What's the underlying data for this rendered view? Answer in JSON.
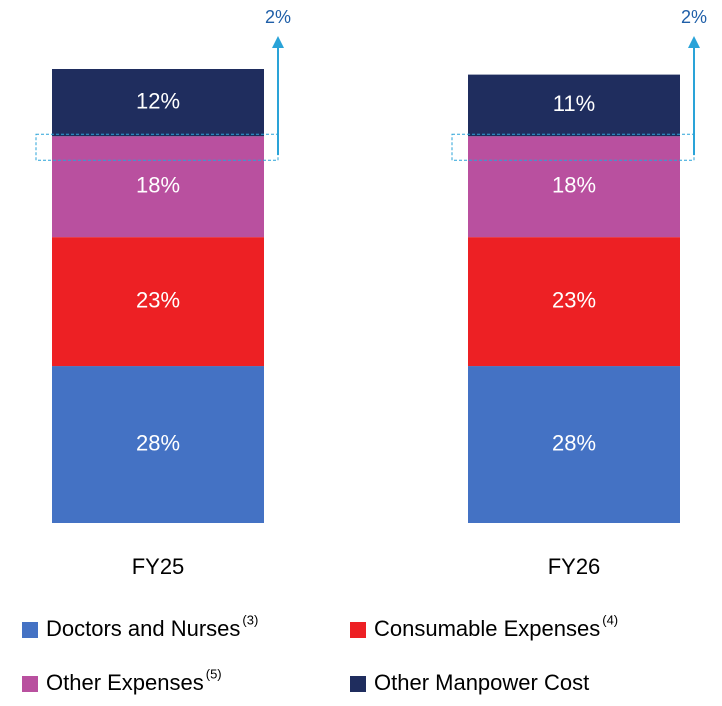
{
  "chart_data": {
    "type": "stacked_bar",
    "categories": [
      "FY25",
      "FY26"
    ],
    "series": [
      {
        "name": "Doctors and Nurses",
        "footnote": "(3)",
        "color": "#4472c4",
        "values": [
          28,
          28
        ],
        "value_labels": [
          "28%",
          "28%"
        ]
      },
      {
        "name": "Consumable Expenses",
        "footnote": "(4)",
        "color": "#ed2024",
        "values": [
          23,
          23
        ],
        "value_labels": [
          "23%",
          "23%"
        ]
      },
      {
        "name": "Other Expenses",
        "footnote": "(5)",
        "color": "#b9509f",
        "values": [
          18,
          18
        ],
        "value_labels": [
          "18%",
          "18%"
        ]
      },
      {
        "name": "Other Manpower Cost",
        "color": "#1f2d5e",
        "values": [
          12,
          11
        ],
        "value_labels": [
          "12%",
          "11%"
        ]
      }
    ],
    "annotations": [
      {
        "text": "2%",
        "color": "#1f5fa8",
        "arrow_color": "#2aa3d8"
      },
      {
        "text": "2%",
        "color": "#1f5fa8",
        "arrow_color": "#2aa3d8"
      }
    ],
    "ylim": [
      0,
      81
    ]
  }
}
